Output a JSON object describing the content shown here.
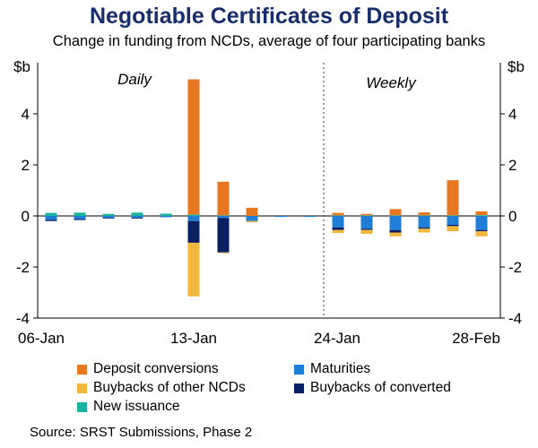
{
  "title": "Negotiable Certificates of Deposit",
  "subtitle": "Change in funding from NCDs, average of four participating banks",
  "source": "Source: SRST Submissions, Phase 2",
  "colors": {
    "deposit_conversions": "#e87722",
    "buybacks_other": "#f4b73e",
    "new_issuance": "#1bb3a0",
    "maturities": "#1f7fd6",
    "buybacks_converted": "#0b1f63",
    "title": "#1a2e6c"
  },
  "legend": [
    {
      "label": "Deposit conversions",
      "color_key": "deposit_conversions"
    },
    {
      "label": "Maturities",
      "color_key": "maturities"
    },
    {
      "label": "Buybacks of other NCDs",
      "color_key": "buybacks_other"
    },
    {
      "label": "Buybacks of converted",
      "color_key": "buybacks_converted"
    },
    {
      "label": "New issuance",
      "color_key": "new_issuance"
    }
  ],
  "chart_data": {
    "type": "bar",
    "stacked": true,
    "unit_label_left": "$b",
    "unit_label_right": "$b",
    "ylim": [
      -4,
      6
    ],
    "yticks": [
      -4,
      -2,
      0,
      2,
      4
    ],
    "grid": false,
    "panels": [
      {
        "label": "Daily",
        "x_tick_labels": [
          "06-Jan",
          "13-Jan"
        ],
        "bars": [
          {
            "deposit_conversions": 0,
            "new_issuance": 0.12,
            "maturities": -0.15,
            "buybacks_other": 0,
            "buybacks_converted": -0.05
          },
          {
            "deposit_conversions": 0,
            "new_issuance": 0.13,
            "maturities": -0.12,
            "buybacks_other": 0,
            "buybacks_converted": -0.04
          },
          {
            "deposit_conversions": 0,
            "new_issuance": 0.08,
            "maturities": -0.07,
            "buybacks_other": 0,
            "buybacks_converted": -0.02
          },
          {
            "deposit_conversions": 0,
            "new_issuance": 0.13,
            "maturities": -0.07,
            "buybacks_other": 0,
            "buybacks_converted": -0.03
          },
          {
            "deposit_conversions": 0,
            "new_issuance": 0.09,
            "maturities": -0.05,
            "buybacks_other": 0,
            "buybacks_converted": 0
          },
          {
            "deposit_conversions": 5.3,
            "new_issuance": 0.05,
            "maturities": -0.2,
            "buybacks_other": -2.1,
            "buybacks_converted": -0.85
          },
          {
            "deposit_conversions": 1.32,
            "new_issuance": 0.02,
            "maturities": -0.08,
            "buybacks_other": -0.02,
            "buybacks_converted": -1.35
          },
          {
            "deposit_conversions": 0.32,
            "new_issuance": 0,
            "maturities": -0.2,
            "buybacks_other": -0.05,
            "buybacks_converted": 0
          },
          {
            "deposit_conversions": 0,
            "new_issuance": 0,
            "maturities": -0.04,
            "buybacks_other": 0,
            "buybacks_converted": 0
          },
          {
            "deposit_conversions": 0,
            "new_issuance": 0,
            "maturities": -0.04,
            "buybacks_other": 0,
            "buybacks_converted": 0
          }
        ]
      },
      {
        "label": "Weekly",
        "x_tick_labels": [
          "24-Jan",
          "28-Feb"
        ],
        "bars": [
          {
            "deposit_conversions": 0.1,
            "new_issuance": 0.02,
            "maturities": -0.45,
            "buybacks_other": -0.12,
            "buybacks_converted": -0.1
          },
          {
            "deposit_conversions": 0.06,
            "new_issuance": 0.02,
            "maturities": -0.5,
            "buybacks_other": -0.15,
            "buybacks_converted": -0.05
          },
          {
            "deposit_conversions": 0.25,
            "new_issuance": 0.02,
            "maturities": -0.55,
            "buybacks_other": -0.15,
            "buybacks_converted": -0.1
          },
          {
            "deposit_conversions": 0.12,
            "new_issuance": 0.02,
            "maturities": -0.45,
            "buybacks_other": -0.15,
            "buybacks_converted": -0.05
          },
          {
            "deposit_conversions": 1.38,
            "new_issuance": 0.02,
            "maturities": -0.35,
            "buybacks_other": -0.2,
            "buybacks_converted": -0.05
          },
          {
            "deposit_conversions": 0.15,
            "new_issuance": 0.03,
            "maturities": -0.55,
            "buybacks_other": -0.2,
            "buybacks_converted": -0.05
          }
        ]
      }
    ]
  }
}
